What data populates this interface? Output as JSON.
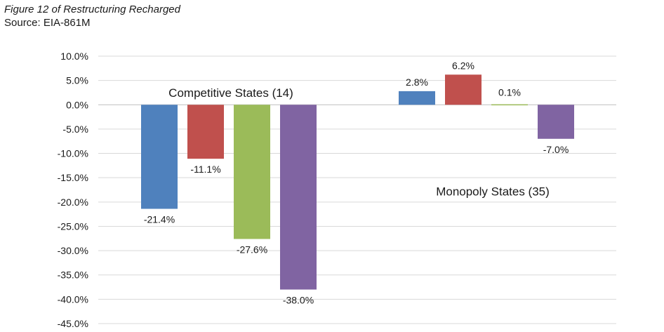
{
  "figure_caption": "Figure 12 of Restructuring Recharged",
  "source_line": "Source: EIA-861M",
  "chart_data": {
    "type": "bar",
    "title": "",
    "xlabel": "",
    "ylabel": "",
    "ylim": [
      -45,
      10
    ],
    "yticks": [
      "10.0%",
      "5.0%",
      "0.0%",
      "-5.0%",
      "-10.0%",
      "-15.0%",
      "-20.0%",
      "-25.0%",
      "-30.0%",
      "-35.0%",
      "-40.0%",
      "-45.0%"
    ],
    "grid": true,
    "groups": [
      {
        "label": "Competitive States (14)",
        "values": [
          -21.4,
          -11.1,
          -27.6,
          -38.0
        ],
        "value_labels": [
          "-21.4%",
          "-11.1%",
          "-27.6%",
          "-38.0%"
        ]
      },
      {
        "label": "Monopoly States (35)",
        "values": [
          2.8,
          6.2,
          0.1,
          -7.0
        ],
        "value_labels": [
          "2.8%",
          "6.2%",
          "0.1%",
          "-7.0%"
        ]
      }
    ],
    "series_colors": [
      "#4f81bd",
      "#c0504d",
      "#9bbb59",
      "#8064a2"
    ]
  }
}
